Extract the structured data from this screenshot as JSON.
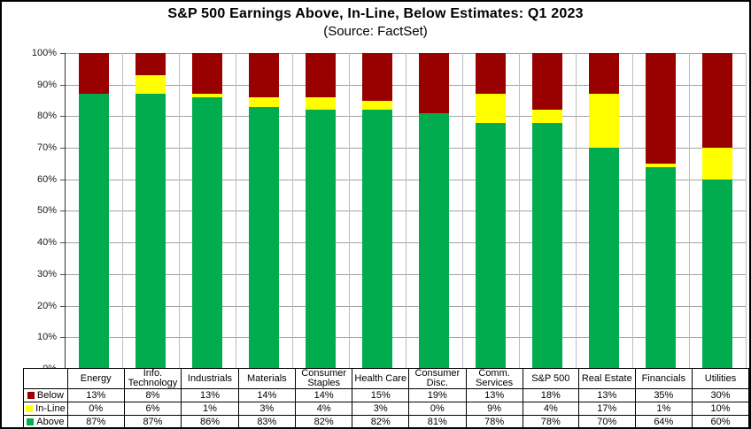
{
  "header": {
    "title": "S&P 500 Earnings Above, In-Line, Below Estimates: Q1 2023",
    "subtitle": "(Source: FactSet)"
  },
  "chart_data": {
    "type": "bar",
    "stacked": true,
    "title": "S&P 500 Earnings Above, In-Line, Below Estimates: Q1 2023",
    "subtitle": "(Source: FactSet)",
    "categories": [
      "Energy",
      "Info. Technology",
      "Industrials",
      "Materials",
      "Consumer Staples",
      "Health Care",
      "Consumer Disc.",
      "Comm. Services",
      "S&P 500",
      "Real Estate",
      "Financials",
      "Utilities"
    ],
    "series": [
      {
        "name": "Below",
        "color": "#990000",
        "values": [
          13,
          8,
          13,
          14,
          14,
          15,
          19,
          13,
          18,
          13,
          35,
          30
        ]
      },
      {
        "name": "In-Line",
        "color": "#FFFF00",
        "values": [
          0,
          6,
          1,
          3,
          4,
          3,
          0,
          9,
          4,
          17,
          1,
          10
        ]
      },
      {
        "name": "Above",
        "color": "#00AC4E",
        "values": [
          87,
          87,
          86,
          83,
          82,
          82,
          81,
          78,
          78,
          70,
          64,
          60
        ]
      }
    ],
    "ylim": [
      0,
      100
    ],
    "y_ticks": [
      "0%",
      "10%",
      "20%",
      "30%",
      "40%",
      "50%",
      "60%",
      "70%",
      "80%",
      "90%",
      "100%"
    ],
    "value_suffix": "%",
    "grid": true,
    "legend_position": "table-left",
    "stack_order_bottom_to_top": [
      "Above",
      "In-Line",
      "Below"
    ]
  }
}
